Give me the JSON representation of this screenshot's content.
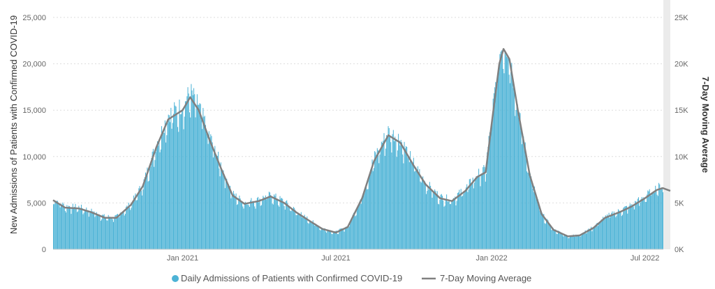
{
  "chart_data": {
    "type": "bar",
    "title": "",
    "ylabel": "New Admissions of Patients with Confirmed COVID-19",
    "ylabel_right": "7-Day Moving Average",
    "ylim": [
      0,
      25000
    ],
    "ylim_right": [
      0,
      25000
    ],
    "grid": true,
    "legend_placement": "bottom-center",
    "y_ticks_left": [
      "0",
      "5,000",
      "10,000",
      "15,000",
      "20,000",
      "25,000"
    ],
    "y_ticks_right": [
      "0K",
      "5K",
      "10K",
      "15K",
      "20K",
      "25K"
    ],
    "x_ticks": [
      {
        "label": "Jan 2021",
        "date": "2021-01-01"
      },
      {
        "label": "Jul 2021",
        "date": "2021-07-01"
      },
      {
        "label": "Jan 2022",
        "date": "2022-01-01"
      },
      {
        "label": "Jul 2022",
        "date": "2022-07-01"
      }
    ],
    "x_range": [
      "2020-08-01",
      "2022-07-31"
    ],
    "series": [
      {
        "name": "Daily Admissions of Patients with Confirmed COVID-19",
        "kind": "bar",
        "color": "#4DB3D6"
      },
      {
        "name": "7-Day Moving Average",
        "kind": "line",
        "color": "#808080"
      }
    ],
    "moving_average": [
      [
        "2020-08-01",
        5300
      ],
      [
        "2020-08-15",
        4500
      ],
      [
        "2020-09-01",
        4400
      ],
      [
        "2020-09-15",
        4000
      ],
      [
        "2020-10-01",
        3400
      ],
      [
        "2020-10-15",
        3400
      ],
      [
        "2020-11-01",
        4800
      ],
      [
        "2020-11-15",
        6800
      ],
      [
        "2020-12-01",
        11000
      ],
      [
        "2020-12-15",
        14000
      ],
      [
        "2021-01-01",
        15000
      ],
      [
        "2021-01-10",
        16400
      ],
      [
        "2021-01-20",
        15000
      ],
      [
        "2021-02-01",
        12000
      ],
      [
        "2021-02-15",
        8800
      ],
      [
        "2021-03-01",
        5800
      ],
      [
        "2021-03-15",
        4900
      ],
      [
        "2021-04-01",
        5200
      ],
      [
        "2021-04-15",
        5700
      ],
      [
        "2021-05-01",
        5000
      ],
      [
        "2021-05-15",
        4000
      ],
      [
        "2021-06-01",
        3000
      ],
      [
        "2021-06-15",
        2200
      ],
      [
        "2021-07-01",
        1800
      ],
      [
        "2021-07-15",
        2400
      ],
      [
        "2021-08-01",
        5500
      ],
      [
        "2021-08-15",
        9500
      ],
      [
        "2021-09-01",
        12300
      ],
      [
        "2021-09-15",
        11500
      ],
      [
        "2021-10-01",
        9000
      ],
      [
        "2021-10-15",
        7000
      ],
      [
        "2021-11-01",
        5500
      ],
      [
        "2021-11-15",
        5200
      ],
      [
        "2021-12-01",
        6300
      ],
      [
        "2021-12-15",
        7800
      ],
      [
        "2021-12-25",
        8300
      ],
      [
        "2022-01-01",
        13500
      ],
      [
        "2022-01-10",
        20000
      ],
      [
        "2022-01-15",
        21600
      ],
      [
        "2022-01-22",
        20500
      ],
      [
        "2022-02-01",
        15000
      ],
      [
        "2022-02-15",
        8000
      ],
      [
        "2022-03-01",
        3800
      ],
      [
        "2022-03-15",
        2100
      ],
      [
        "2022-04-01",
        1400
      ],
      [
        "2022-04-15",
        1500
      ],
      [
        "2022-05-01",
        2300
      ],
      [
        "2022-05-15",
        3400
      ],
      [
        "2022-06-01",
        4000
      ],
      [
        "2022-06-15",
        4600
      ],
      [
        "2022-07-01",
        5500
      ],
      [
        "2022-07-15",
        6400
      ],
      [
        "2022-07-22",
        6600
      ],
      [
        "2022-07-31",
        6300
      ]
    ]
  }
}
